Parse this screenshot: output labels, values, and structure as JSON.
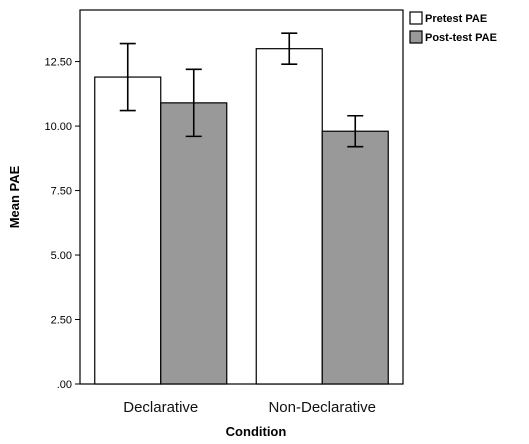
{
  "chart_data": {
    "type": "bar",
    "title": "",
    "xlabel": "Condition",
    "ylabel": "Mean PAE",
    "categories": [
      "Declarative",
      "Non-Declarative"
    ],
    "ylim": [
      0,
      14.5
    ],
    "yticks": [
      0,
      2.5,
      5,
      7.5,
      10,
      12.5
    ],
    "ytick_labels": [
      ".00",
      "2.50",
      "5.00",
      "7.50",
      "10.00",
      "12.50"
    ],
    "grid": false,
    "legend_position": "top-right outside",
    "series": [
      {
        "name": "Pretest PAE",
        "color": "#ffffff",
        "values": [
          11.9,
          13.0
        ],
        "error_low": [
          10.6,
          12.4
        ],
        "error_high": [
          13.2,
          13.6
        ]
      },
      {
        "name": "Post-test PAE",
        "color": "#999999",
        "values": [
          10.9,
          9.8
        ],
        "error_low": [
          9.6,
          9.2
        ],
        "error_high": [
          12.2,
          10.4
        ]
      }
    ]
  }
}
